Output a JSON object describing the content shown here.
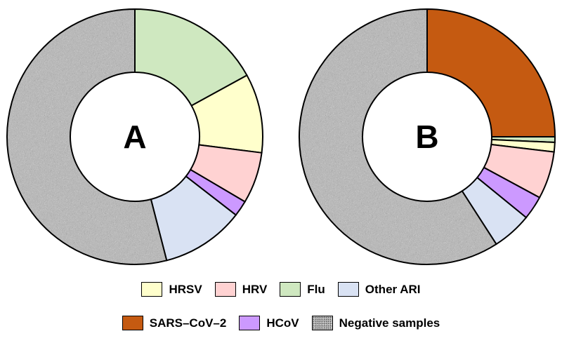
{
  "chart_data": [
    {
      "type": "donut",
      "label": "A",
      "slices": [
        {
          "name": "Flu",
          "value": 17
        },
        {
          "name": "HRSV",
          "value": 10
        },
        {
          "name": "HRV",
          "value": 6.5
        },
        {
          "name": "HCoV",
          "value": 2
        },
        {
          "name": "Other ARI",
          "value": 10.5
        },
        {
          "name": "Negative samples",
          "value": 54
        }
      ]
    },
    {
      "type": "donut",
      "label": "B",
      "slices": [
        {
          "name": "SARS–CoV–2",
          "value": 25
        },
        {
          "name": "Flu",
          "value": 0.7
        },
        {
          "name": "HRSV",
          "value": 1.2
        },
        {
          "name": "HRV",
          "value": 6
        },
        {
          "name": "HCoV",
          "value": 3
        },
        {
          "name": "Other ARI",
          "value": 5
        },
        {
          "name": "Negative samples",
          "value": 59.1
        }
      ]
    }
  ],
  "colors": {
    "HRSV": "#ffffcc",
    "HRV": "#ffd2d2",
    "Flu": "#cfe8c0",
    "Other ARI": "#d9e2f3",
    "SARS–CoV–2": "#c55a11",
    "HCoV": "#cc99ff",
    "Negative samples": "#b4b4b4"
  },
  "legend": {
    "row1": [
      "HRSV",
      "HRV",
      "Flu",
      "Other ARI"
    ],
    "row2": [
      "SARS–CoV–2",
      "HCoV",
      "Negative samples"
    ],
    "placement": "bottom"
  }
}
